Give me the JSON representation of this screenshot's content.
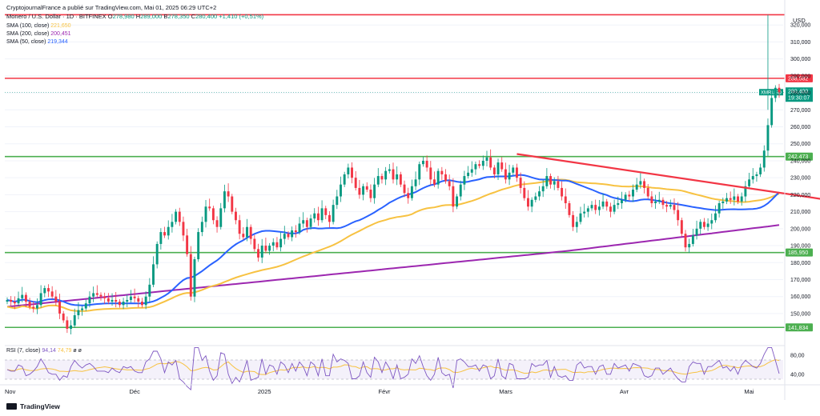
{
  "header": {
    "line1": "CryptojournalFrance a publié sur TradingView.com, Mai 01, 2025 06:29 UTC+2",
    "symbol": "Monero / U.S. Dollar · 1D · BITFINEX",
    "o_label": "O",
    "o_val": "278,980",
    "h_label": "H",
    "h_val": "289,000",
    "l_label": "B",
    "l_val": "278,350",
    "c_label": "C",
    "c_val": "280,400",
    "change": "+1,410 (+0,51%)"
  },
  "legends": [
    {
      "label": "SMA (100, close)",
      "value": "221,650",
      "color": "#f7c242"
    },
    {
      "label": "SMA (200, close)",
      "value": "200,451",
      "color": "#9c27b0"
    },
    {
      "label": "SMA (50, close)",
      "value": "219,344",
      "color": "#2962ff"
    }
  ],
  "currency": "USD",
  "rsi": {
    "label": "RSI (7, close)",
    "v1": "94,14",
    "v2": "74,79",
    "v3": "ø",
    "v4": "ø"
  },
  "brand": "TradingView",
  "chart_data": {
    "type": "candlestick",
    "symbol": "XMRUSD",
    "x_labels": [
      "Nov",
      "Déc",
      "2025",
      "Févr",
      "Mars",
      "Avr",
      "Mai"
    ],
    "y_ticks": [
      150,
      160,
      170,
      180,
      190,
      200,
      210,
      220,
      230,
      240,
      250,
      260,
      270,
      280,
      290,
      300,
      310,
      320
    ],
    "ylim": [
      133,
      330
    ],
    "horizontal_lines": [
      {
        "value": 326,
        "color": "#f23645",
        "label": ""
      },
      {
        "value": 288.582,
        "color": "#f23645",
        "label": "288,582"
      },
      {
        "value": 242.473,
        "color": "#4caf50",
        "label": "242,473"
      },
      {
        "value": 185.95,
        "color": "#4caf50",
        "label": "185,950"
      },
      {
        "value": 141.834,
        "color": "#4caf50",
        "label": "141,834"
      }
    ],
    "last_price": {
      "label": "XMRUSD",
      "value": "280,400",
      "countdown": "19:30:07"
    },
    "trendline": {
      "from_day": 136,
      "from_value": 244,
      "to_day": 228,
      "to_value": 214,
      "color": "#f23645"
    },
    "closes": [
      158,
      157,
      156,
      159,
      161,
      157,
      154,
      153,
      155,
      162,
      165,
      163,
      160,
      157,
      150,
      146,
      141,
      143,
      149,
      152,
      153,
      156,
      160,
      162,
      161,
      160,
      159,
      157,
      158,
      157,
      155,
      157,
      158,
      160,
      159,
      157,
      155,
      160,
      167,
      179,
      191,
      198,
      196,
      201,
      204,
      210,
      204,
      196,
      185,
      160,
      182,
      198,
      204,
      213,
      212,
      205,
      201,
      212,
      222,
      219,
      210,
      205,
      197,
      195,
      201,
      194,
      188,
      183,
      190,
      187,
      190,
      192,
      189,
      194,
      197,
      195,
      199,
      198,
      203,
      205,
      201,
      206,
      209,
      205,
      212,
      208,
      204,
      214,
      219,
      226,
      232,
      236,
      230,
      224,
      220,
      225,
      223,
      218,
      226,
      231,
      229,
      234,
      235,
      229,
      232,
      226,
      221,
      218,
      225,
      229,
      238,
      240,
      236,
      229,
      226,
      234,
      232,
      228,
      225,
      213,
      219,
      226,
      231,
      233,
      235,
      238,
      237,
      240,
      242,
      236,
      232,
      239,
      235,
      229,
      233,
      236,
      230,
      224,
      218,
      213,
      217,
      219,
      222,
      225,
      231,
      226,
      228,
      224,
      219,
      215,
      208,
      201,
      204,
      209,
      210,
      212,
      214,
      211,
      213,
      216,
      213,
      210,
      214,
      215,
      217,
      220,
      219,
      223,
      226,
      228,
      224,
      219,
      215,
      216,
      217,
      214,
      213,
      214,
      211,
      205,
      197,
      189,
      191,
      196,
      200,
      204,
      201,
      203,
      205,
      209,
      215,
      216,
      218,
      217,
      219,
      216,
      219,
      225,
      229,
      231,
      232,
      236,
      246,
      261,
      277,
      283,
      280.4
    ]
  }
}
